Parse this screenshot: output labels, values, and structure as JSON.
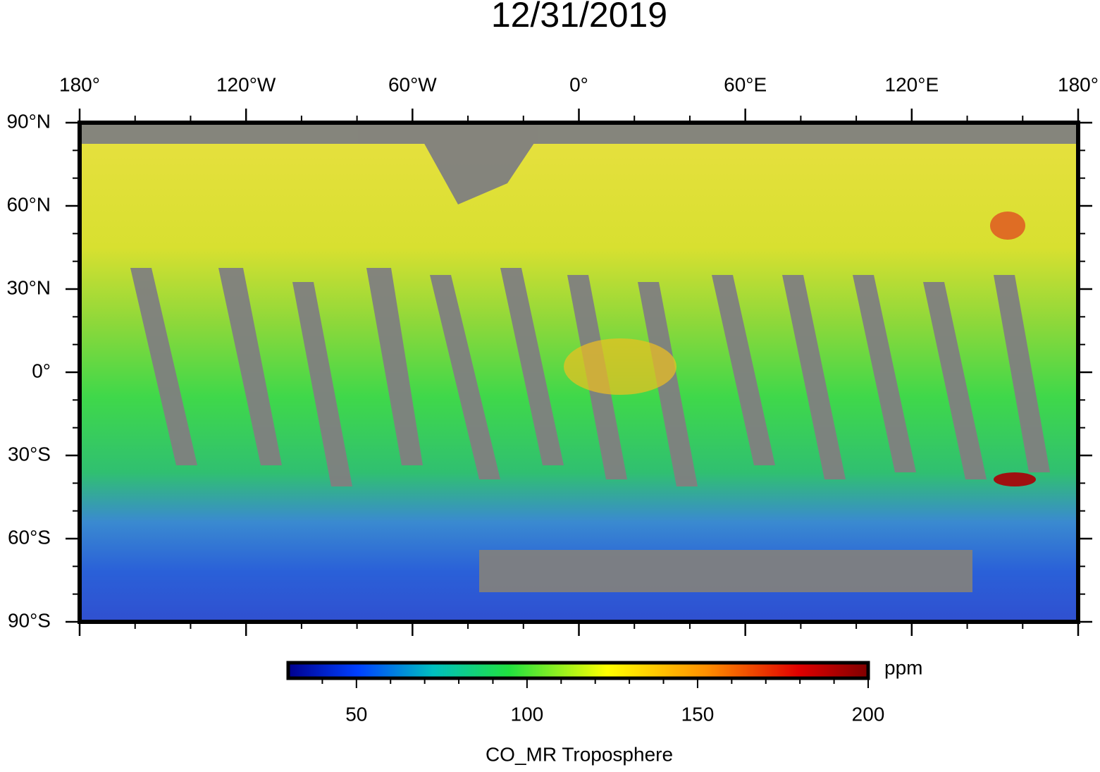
{
  "header": {
    "title": "12/31/2019"
  },
  "map": {
    "lon_ticks": [
      {
        "value": -180,
        "label": "180°"
      },
      {
        "value": -120,
        "label": "120°W"
      },
      {
        "value": -60,
        "label": "60°W"
      },
      {
        "value": 0,
        "label": "0°"
      },
      {
        "value": 60,
        "label": "60°E"
      },
      {
        "value": 120,
        "label": "120°E"
      },
      {
        "value": 180,
        "label": "180°"
      }
    ],
    "lat_ticks": [
      {
        "value": 90,
        "label": "90°N"
      },
      {
        "value": 60,
        "label": "60°N"
      },
      {
        "value": 30,
        "label": "30°N"
      },
      {
        "value": 0,
        "label": "0°"
      },
      {
        "value": -30,
        "label": "30°S"
      },
      {
        "value": -60,
        "label": "60°S"
      },
      {
        "value": -90,
        "label": "90°S"
      }
    ],
    "lon_minor_ticks": [
      -160,
      -140,
      -100,
      -80,
      -40,
      -20,
      20,
      40,
      80,
      100,
      140,
      160
    ],
    "lat_minor_ticks": [
      80,
      70,
      50,
      40,
      20,
      10,
      -10,
      -20,
      -40,
      -50,
      -70,
      -80
    ]
  },
  "colorbar": {
    "lim": [
      30,
      200
    ],
    "ticks": [
      50,
      100,
      150,
      200
    ],
    "minor_ticks": [
      40,
      60,
      70,
      80,
      90,
      110,
      120,
      130,
      140,
      160,
      170,
      180,
      190
    ],
    "unit": "ppm",
    "label": "CO_MR Troposphere"
  }
}
